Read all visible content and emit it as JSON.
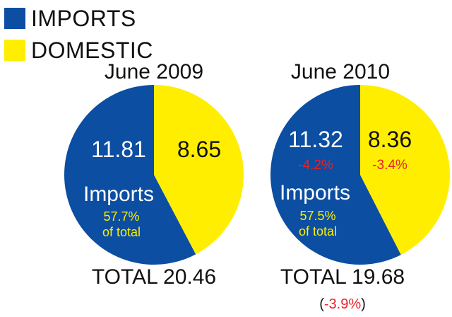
{
  "colors": {
    "imports": "#0b4ea2",
    "domestic": "#ffee00",
    "negative": "#e8202a",
    "share_text": "#ffee00",
    "value_on_blue": "#ffffff",
    "value_on_yellow": "#111111"
  },
  "legend": {
    "items": [
      {
        "label": "IMPORTS",
        "color": "#0b4ea2"
      },
      {
        "label": "DOMESTIC",
        "color": "#ffee00"
      }
    ],
    "placement": "top-left"
  },
  "chart_data": [
    {
      "type": "pie",
      "title": "June 2009",
      "slices": [
        {
          "label": "Imports",
          "value": 11.81,
          "color": "#0b4ea2",
          "value_label": "11.81"
        },
        {
          "label": "Domestic",
          "value": 8.65,
          "color": "#ffee00",
          "value_label": "8.65"
        }
      ],
      "imports_label": "Imports",
      "share_line1": "57.7%",
      "share_line2": "of total",
      "total_label": "TOTAL 20.46"
    },
    {
      "type": "pie",
      "title": "June 2010",
      "slices": [
        {
          "label": "Imports",
          "value": 11.32,
          "color": "#0b4ea2",
          "value_label": "11.32",
          "change_label": "-4.2%"
        },
        {
          "label": "Domestic",
          "value": 8.36,
          "color": "#ffee00",
          "value_label": "8.36",
          "change_label": "-3.4%"
        }
      ],
      "imports_label": "Imports",
      "share_line1": "57.5%",
      "share_line2": "of total",
      "total_label": "TOTAL 19.68",
      "total_change_label": "(-3.9%)",
      "total_change_value": "-3.9%"
    }
  ]
}
